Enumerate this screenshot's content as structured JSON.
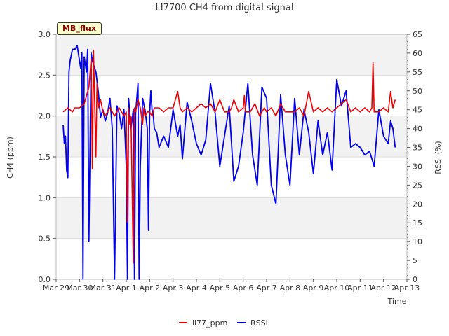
{
  "badge": "MB_flux",
  "colors": {
    "li77": "#ee0000",
    "rssi": "#0000ee",
    "band": "#f2f2f2",
    "grid": "#dddddd"
  },
  "chart_data": {
    "type": "line",
    "title": "LI7700 CH4 from digital signal",
    "xlabel": "Time",
    "ylabel": "CH4 (ppm)",
    "y2label": "RSSI (%)",
    "ylim": [
      0,
      3
    ],
    "y2lim": [
      0,
      65
    ],
    "xlim": [
      0,
      15
    ],
    "x_ticks": [
      0,
      1,
      2,
      3,
      4,
      5,
      6,
      7,
      8,
      9,
      10,
      11,
      12,
      13,
      14,
      15
    ],
    "x_tick_labels": [
      "Mar 29",
      "Mar 30",
      "Mar 31",
      "Apr 1",
      "Apr 2",
      "Apr 3",
      "Apr 4",
      "Apr 5",
      "Apr 6",
      "Apr 7",
      "Apr 8",
      "Apr 9",
      "Apr 10",
      "Apr 11",
      "Apr 12",
      "Apr 13"
    ],
    "y_ticks": [
      0.0,
      0.5,
      1.0,
      1.5,
      2.0,
      2.5,
      3.0
    ],
    "y_tick_labels": [
      "0.0",
      "0.5",
      "1.0",
      "1.5",
      "2.0",
      "2.5",
      "3.0"
    ],
    "y2_ticks": [
      0,
      5,
      10,
      15,
      20,
      25,
      30,
      35,
      40,
      45,
      50,
      55,
      60,
      65
    ],
    "y2_tick_labels": [
      "0",
      "5",
      "10",
      "15",
      "20",
      "25",
      "30",
      "35",
      "40",
      "45",
      "50",
      "55",
      "60",
      "65"
    ],
    "legend": [
      "li77_ppm",
      "RSSI"
    ],
    "legend_position": "bottom-center",
    "series": [
      {
        "name": "li77_ppm",
        "axis": "left",
        "x": [
          0.3,
          0.5,
          0.7,
          0.8,
          1.0,
          1.2,
          1.4,
          1.5,
          1.55,
          1.6,
          1.7,
          1.75,
          1.8,
          1.9,
          2.0,
          2.1,
          2.2,
          2.3,
          2.4,
          2.5,
          2.6,
          2.7,
          2.8,
          2.9,
          3.0,
          3.05,
          3.1,
          3.15,
          3.2,
          3.3,
          3.35,
          3.4,
          3.5,
          3.6,
          3.7,
          3.75,
          3.8,
          3.9,
          4.0,
          4.1,
          4.2,
          4.4,
          4.6,
          4.8,
          5.0,
          5.2,
          5.3,
          5.4,
          5.6,
          5.8,
          6.0,
          6.2,
          6.4,
          6.6,
          6.8,
          7.0,
          7.2,
          7.4,
          7.5,
          7.6,
          7.8,
          8.0,
          8.05,
          8.1,
          8.3,
          8.5,
          8.7,
          8.9,
          9.0,
          9.2,
          9.4,
          9.6,
          9.8,
          10.0,
          10.2,
          10.4,
          10.6,
          10.8,
          11.0,
          11.2,
          11.4,
          11.6,
          11.8,
          12.0,
          12.2,
          12.4,
          12.6,
          12.8,
          13.0,
          13.2,
          13.4,
          13.5,
          13.55,
          13.6,
          13.8,
          14.0,
          14.2,
          14.3,
          14.4,
          14.5
        ],
        "y": [
          2.05,
          2.1,
          2.05,
          2.1,
          2.1,
          2.15,
          2.35,
          2.7,
          1.35,
          2.8,
          1.5,
          2.4,
          2.1,
          2.2,
          2.05,
          2.0,
          2.05,
          2.1,
          2.05,
          2.0,
          2.05,
          2.1,
          2.05,
          2.0,
          2.05,
          0.7,
          2.1,
          1.9,
          2.0,
          0.2,
          2.1,
          2.05,
          2.2,
          2.1,
          1.9,
          2.1,
          2.0,
          2.05,
          2.05,
          2.0,
          2.1,
          2.1,
          2.05,
          2.1,
          2.1,
          2.3,
          2.1,
          2.05,
          2.1,
          2.05,
          2.1,
          2.15,
          2.1,
          2.15,
          2.05,
          2.2,
          2.05,
          2.05,
          2.1,
          2.2,
          2.05,
          2.1,
          2.25,
          2.05,
          2.05,
          2.15,
          2.0,
          2.1,
          2.05,
          2.1,
          2.0,
          2.15,
          2.05,
          2.05,
          2.05,
          2.1,
          2.0,
          2.3,
          2.05,
          2.1,
          2.05,
          2.1,
          2.05,
          2.1,
          2.15,
          2.2,
          2.05,
          2.1,
          2.05,
          2.1,
          2.05,
          2.1,
          2.65,
          2.05,
          2.05,
          2.1,
          2.05,
          2.3,
          2.1,
          2.2
        ]
      },
      {
        "name": "RSSI",
        "axis": "right",
        "x": [
          0.3,
          0.35,
          0.4,
          0.45,
          0.5,
          0.55,
          0.6,
          0.7,
          0.8,
          0.9,
          1.0,
          1.05,
          1.1,
          1.15,
          1.2,
          1.3,
          1.35,
          1.4,
          1.5,
          1.55,
          1.6,
          1.7,
          1.8,
          1.9,
          2.0,
          2.1,
          2.2,
          2.3,
          2.4,
          2.5,
          2.6,
          2.7,
          2.8,
          2.9,
          3.0,
          3.05,
          3.1,
          3.2,
          3.3,
          3.35,
          3.4,
          3.5,
          3.55,
          3.6,
          3.7,
          3.8,
          3.9,
          3.95,
          4.0,
          4.05,
          4.1,
          4.15,
          4.2,
          4.3,
          4.4,
          4.6,
          4.8,
          5.0,
          5.2,
          5.3,
          5.4,
          5.6,
          5.8,
          6.0,
          6.2,
          6.4,
          6.6,
          6.8,
          7.0,
          7.2,
          7.4,
          7.6,
          7.8,
          8.0,
          8.2,
          8.4,
          8.6,
          8.8,
          9.0,
          9.2,
          9.4,
          9.6,
          9.8,
          10.0,
          10.2,
          10.4,
          10.6,
          10.8,
          11.0,
          11.2,
          11.4,
          11.6,
          11.8,
          12.0,
          12.2,
          12.4,
          12.6,
          12.8,
          13.0,
          13.2,
          13.4,
          13.6,
          13.8,
          14.0,
          14.2,
          14.3,
          14.4,
          14.5
        ],
        "y": [
          41,
          36,
          38,
          29,
          27,
          55,
          58,
          61,
          61,
          62,
          58,
          56,
          60,
          0,
          59,
          55,
          61,
          10,
          60,
          58,
          57,
          55,
          50,
          43,
          45,
          42,
          44,
          48,
          40,
          0,
          46,
          44,
          40,
          45,
          30,
          0,
          48,
          40,
          45,
          0,
          44,
          52,
          0,
          30,
          48,
          45,
          40,
          13,
          44,
          50,
          45,
          44,
          40,
          39,
          35,
          38,
          35,
          45,
          38,
          41,
          32,
          47,
          42,
          36,
          33,
          37,
          52,
          44,
          30,
          38,
          46,
          26,
          30,
          39,
          52,
          33,
          25,
          51,
          48,
          25,
          20,
          49,
          33,
          25,
          48,
          33,
          45,
          39,
          28,
          42,
          33,
          39,
          29,
          53,
          46,
          50,
          35,
          36,
          35,
          33,
          34,
          30,
          45,
          38,
          36,
          42,
          40,
          35
        ]
      }
    ]
  }
}
